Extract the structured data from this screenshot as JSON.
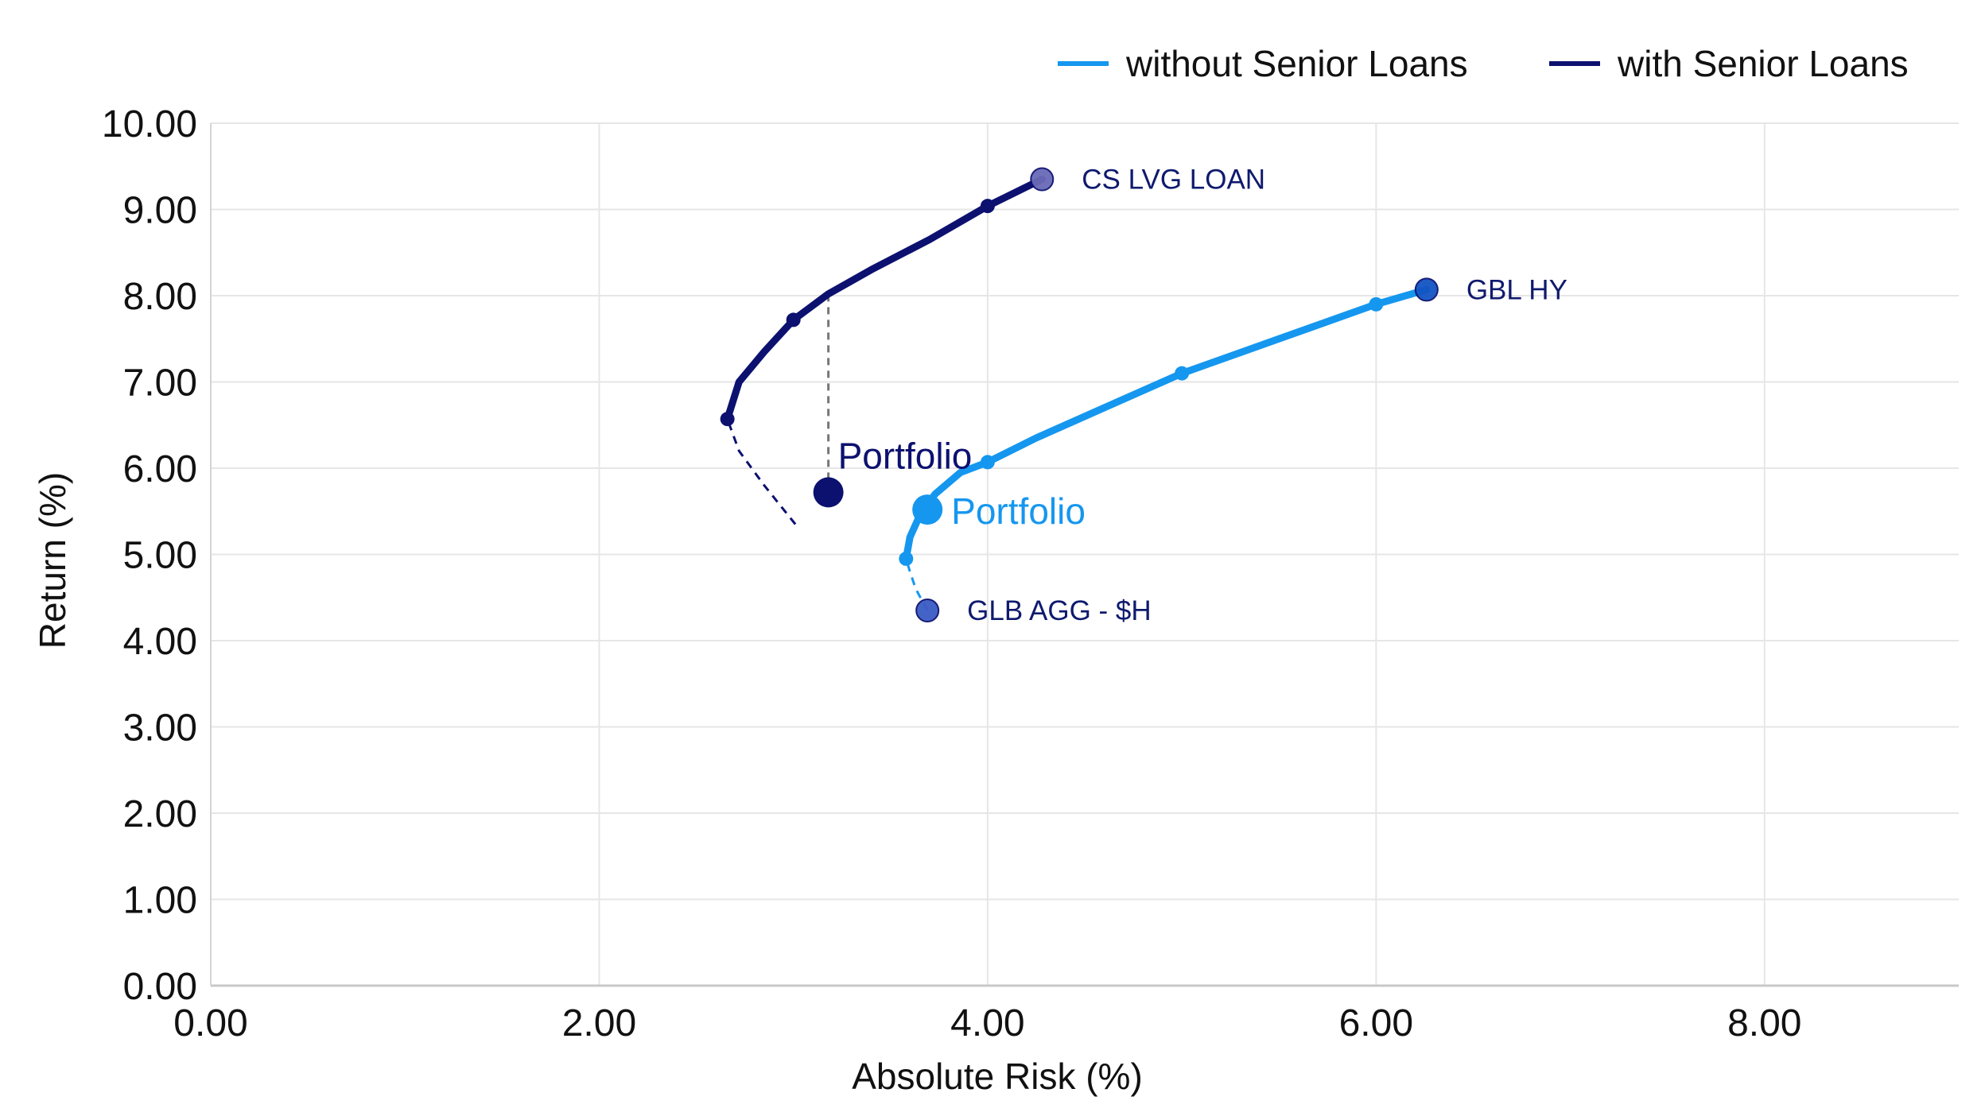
{
  "chart_data": {
    "type": "line",
    "xlabel": "Absolute Risk (%)",
    "ylabel": "Return (%)",
    "xlim": [
      0,
      9
    ],
    "ylim": [
      0,
      10
    ],
    "x_ticks": [
      "0.00",
      "2.00",
      "4.00",
      "6.00",
      "8.00"
    ],
    "y_ticks": [
      "0.00",
      "1.00",
      "2.00",
      "3.00",
      "4.00",
      "5.00",
      "6.00",
      "7.00",
      "8.00",
      "9.00",
      "10.00"
    ],
    "grid": true,
    "legend_position": "top-right",
    "colors": {
      "without": "#1597ef",
      "with": "#0c1170",
      "glbhy": "#1254c4",
      "glbagg": "#3b5bc4",
      "cslvg": "#6a6ab8",
      "dashed_connector": "#777777"
    },
    "series": [
      {
        "name": "without Senior Loans",
        "key": "without",
        "solid": [
          [
            3.69,
            4.35
          ],
          [
            3.63,
            4.6
          ],
          [
            3.6,
            4.8
          ],
          [
            3.58,
            4.95
          ],
          [
            3.6,
            5.2
          ],
          [
            3.65,
            5.45
          ],
          [
            3.73,
            5.7
          ],
          [
            3.86,
            5.95
          ],
          [
            4.0,
            6.07
          ],
          [
            4.25,
            6.35
          ],
          [
            4.6,
            6.7
          ],
          [
            5.0,
            7.1
          ],
          [
            5.5,
            7.5
          ],
          [
            6.0,
            7.9
          ],
          [
            6.26,
            8.07
          ]
        ],
        "dashed_from": 3,
        "markers": [
          [
            3.58,
            4.95
          ],
          [
            4.0,
            6.07
          ],
          [
            5.0,
            7.1
          ],
          [
            6.0,
            7.9
          ]
        ]
      },
      {
        "name": "with Senior Loans",
        "key": "with",
        "solid": [
          [
            3.01,
            5.35
          ],
          [
            2.85,
            5.8
          ],
          [
            2.72,
            6.2
          ],
          [
            2.66,
            6.57
          ],
          [
            2.72,
            7.0
          ],
          [
            2.85,
            7.35
          ],
          [
            3.0,
            7.72
          ],
          [
            3.18,
            8.02
          ],
          [
            3.4,
            8.3
          ],
          [
            3.7,
            8.65
          ],
          [
            4.0,
            9.04
          ],
          [
            4.28,
            9.35
          ]
        ],
        "dashed_from": 3,
        "markers": [
          [
            2.66,
            6.57
          ],
          [
            3.0,
            7.72
          ],
          [
            4.0,
            9.04
          ]
        ]
      }
    ],
    "labelled_points": [
      {
        "label": "CS LVG LOAN",
        "x": 4.28,
        "y": 9.35,
        "color_key": "cslvg"
      },
      {
        "label": "GBL HY",
        "x": 6.26,
        "y": 8.07,
        "color_key": "glbhy"
      },
      {
        "label": "GLB AGG - $H",
        "x": 3.69,
        "y": 4.35,
        "color_key": "glbagg"
      }
    ],
    "portfolios": [
      {
        "label": "Portfolio",
        "x": 3.18,
        "y": 5.72,
        "series_key": "with"
      },
      {
        "label": "Portfolio",
        "x": 3.69,
        "y": 5.52,
        "series_key": "without"
      }
    ],
    "connector": {
      "x": 3.18,
      "y_from": 5.72,
      "y_to": 8.02
    }
  }
}
